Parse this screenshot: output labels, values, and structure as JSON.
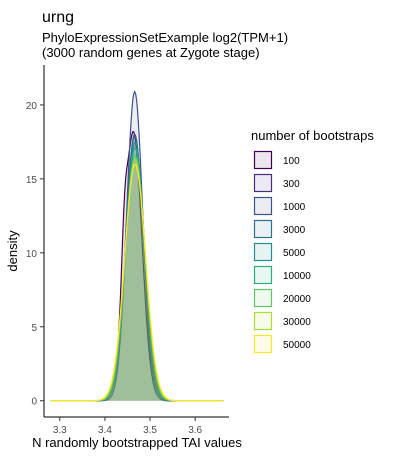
{
  "chart_data": {
    "type": "area",
    "title": "urng",
    "subtitle_lines": [
      "PhyloExpressionSetExample log2(TPM+1)",
      "(3000 random genes at Zygote stage)"
    ],
    "xlabel": "N randomly bootstrapped TAI values",
    "ylabel": "density",
    "xlim": [
      3.265,
      3.675
    ],
    "ylim": [
      -1.1,
      22.7
    ],
    "x_ticks": [
      3.3,
      3.4,
      3.5,
      3.6
    ],
    "x_tick_labels": [
      "3.3",
      "3.4",
      "3.5",
      "3.6"
    ],
    "y_ticks": [
      0,
      5,
      10,
      15,
      20
    ],
    "y_tick_labels": [
      "0",
      "5",
      "10",
      "15",
      "20"
    ],
    "grid": false,
    "legend": {
      "title": "number of bootstraps",
      "placement": "right",
      "items": [
        "100",
        "300",
        "1000",
        "3000",
        "5000",
        "10000",
        "20000",
        "30000",
        "50000"
      ]
    },
    "series": [
      {
        "name": "100",
        "color": "#440154",
        "mean": 3.463,
        "sd": 0.019,
        "peak": 18.2,
        "shoulder": true
      },
      {
        "name": "300",
        "color": "#472D7B",
        "mean": 3.466,
        "sd": 0.0196,
        "peak": 18.0,
        "shoulder": false
      },
      {
        "name": "1000",
        "color": "#3B528B",
        "mean": 3.466,
        "sd": 0.0178,
        "peak": 20.9,
        "shoulder": false
      },
      {
        "name": "3000",
        "color": "#2C728E",
        "mean": 3.466,
        "sd": 0.02,
        "peak": 17.9,
        "shoulder": false
      },
      {
        "name": "5000",
        "color": "#21908C",
        "mean": 3.467,
        "sd": 0.0205,
        "peak": 17.5,
        "shoulder": false
      },
      {
        "name": "10000",
        "color": "#27AD81",
        "mean": 3.467,
        "sd": 0.0212,
        "peak": 17.1,
        "shoulder": false
      },
      {
        "name": "20000",
        "color": "#5DC863",
        "mean": 3.467,
        "sd": 0.022,
        "peak": 16.6,
        "shoulder": false
      },
      {
        "name": "30000",
        "color": "#AADC32",
        "mean": 3.467,
        "sd": 0.0226,
        "peak": 16.3,
        "shoulder": false
      },
      {
        "name": "50000",
        "color": "#FDE725",
        "mean": 3.467,
        "sd": 0.0232,
        "peak": 16.0,
        "shoulder": false
      }
    ]
  }
}
